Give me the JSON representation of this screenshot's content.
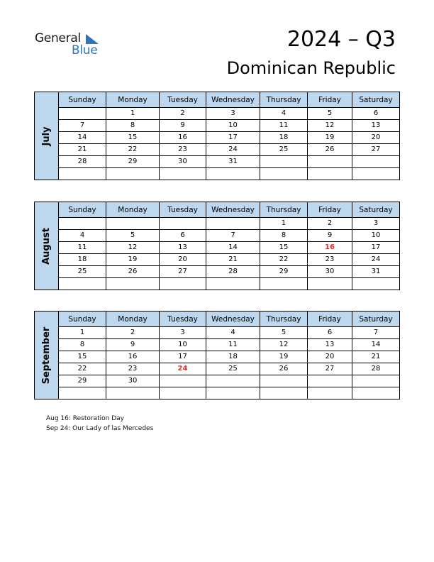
{
  "logo": {
    "word1": "General",
    "word2": "Blue"
  },
  "title": "2024 – Q3",
  "subtitle": "Dominican Republic",
  "day_names": [
    "Sunday",
    "Monday",
    "Tuesday",
    "Wednesday",
    "Thursday",
    "Friday",
    "Saturday"
  ],
  "months": [
    {
      "name": "July",
      "weeks": [
        [
          "",
          "1",
          "2",
          "3",
          "4",
          "5",
          "6"
        ],
        [
          "7",
          "8",
          "9",
          "10",
          "11",
          "12",
          "13"
        ],
        [
          "14",
          "15",
          "16",
          "17",
          "18",
          "19",
          "20"
        ],
        [
          "21",
          "22",
          "23",
          "24",
          "25",
          "26",
          "27"
        ],
        [
          "28",
          "29",
          "30",
          "31",
          "",
          "",
          ""
        ],
        [
          "",
          "",
          "",
          "",
          "",
          "",
          ""
        ]
      ],
      "holidays": []
    },
    {
      "name": "August",
      "weeks": [
        [
          "",
          "",
          "",
          "",
          "1",
          "2",
          "3"
        ],
        [
          "4",
          "5",
          "6",
          "7",
          "8",
          "9",
          "10"
        ],
        [
          "11",
          "12",
          "13",
          "14",
          "15",
          "16",
          "17"
        ],
        [
          "18",
          "19",
          "20",
          "21",
          "22",
          "23",
          "24"
        ],
        [
          "25",
          "26",
          "27",
          "28",
          "29",
          "30",
          "31"
        ],
        [
          "",
          "",
          "",
          "",
          "",
          "",
          ""
        ]
      ],
      "holidays": [
        "16"
      ]
    },
    {
      "name": "September",
      "weeks": [
        [
          "1",
          "2",
          "3",
          "4",
          "5",
          "6",
          "7"
        ],
        [
          "8",
          "9",
          "10",
          "11",
          "12",
          "13",
          "14"
        ],
        [
          "15",
          "16",
          "17",
          "18",
          "19",
          "20",
          "21"
        ],
        [
          "22",
          "23",
          "24",
          "25",
          "26",
          "27",
          "28"
        ],
        [
          "29",
          "30",
          "",
          "",
          "",
          "",
          ""
        ],
        [
          "",
          "",
          "",
          "",
          "",
          "",
          ""
        ]
      ],
      "holidays": [
        "24"
      ]
    }
  ],
  "notes": [
    "Aug 16: Restoration Day",
    "Sep 24: Our Lady of las Mercedes"
  ],
  "colors": {
    "header_bg": "#bdd7ee",
    "holiday": "#e03030",
    "brand": "#2e75b6"
  }
}
